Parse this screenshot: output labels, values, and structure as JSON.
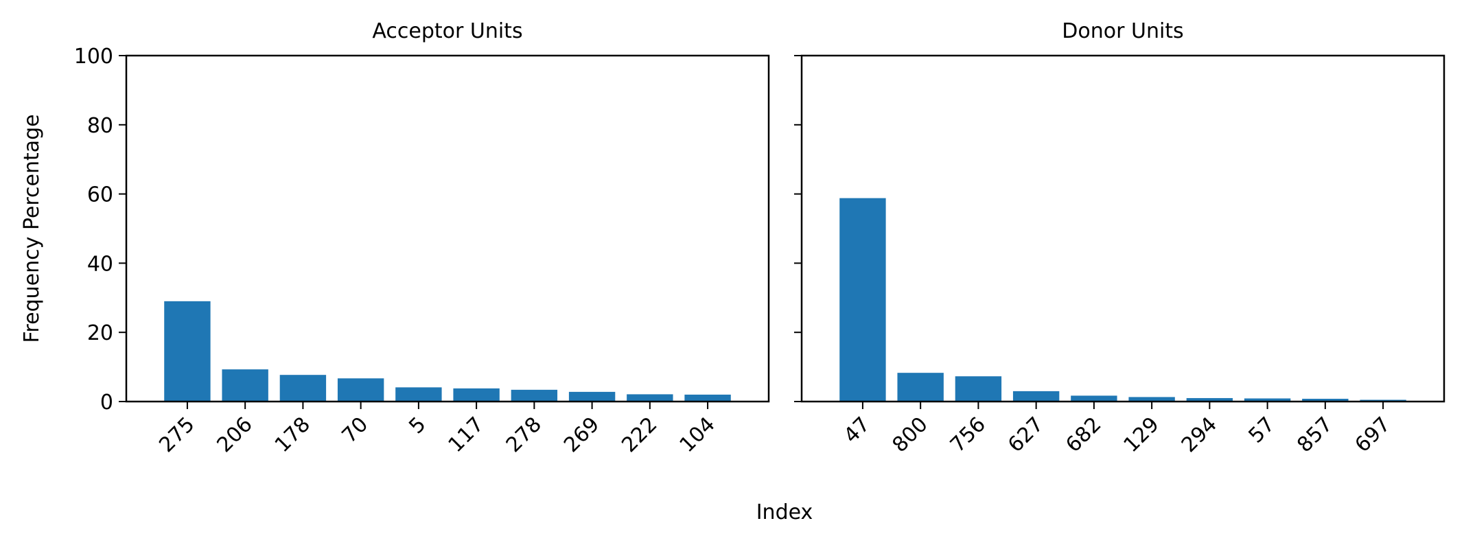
{
  "figure": {
    "xlabel": "Index",
    "ylabel": "Frequency Percentage",
    "bar_color": "#1f77b4"
  },
  "chart_data": [
    {
      "type": "bar",
      "title": "Acceptor Units",
      "categories": [
        "275",
        "206",
        "178",
        "70",
        "5",
        "117",
        "278",
        "269",
        "222",
        "104"
      ],
      "values": [
        29.0,
        9.3,
        7.7,
        6.7,
        4.1,
        3.8,
        3.4,
        2.8,
        2.1,
        2.0
      ],
      "ylim": [
        0,
        100
      ],
      "yticks": [
        0,
        20,
        40,
        60,
        80,
        100
      ],
      "grid": false
    },
    {
      "type": "bar",
      "title": "Donor Units",
      "categories": [
        "47",
        "800",
        "756",
        "627",
        "682",
        "129",
        "294",
        "57",
        "857",
        "697"
      ],
      "values": [
        58.8,
        8.3,
        7.3,
        3.0,
        1.7,
        1.3,
        1.0,
        0.9,
        0.8,
        0.5
      ],
      "ylim": [
        0,
        100
      ],
      "yticks": [
        0,
        20,
        40,
        60,
        80,
        100
      ],
      "grid": false
    }
  ]
}
